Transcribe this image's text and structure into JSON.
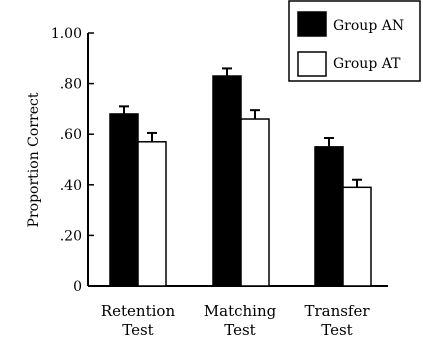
{
  "chart_data": {
    "type": "bar",
    "ylabel": "Proportion  Correct",
    "ylim": [
      0,
      1.0
    ],
    "yticks": [
      {
        "value": 0,
        "label": "0"
      },
      {
        "value": 0.2,
        "label": ".20"
      },
      {
        "value": 0.4,
        "label": ".40"
      },
      {
        "value": 0.6,
        "label": ".60"
      },
      {
        "value": 0.8,
        "label": ".80"
      },
      {
        "value": 1.0,
        "label": "1.00"
      }
    ],
    "categories": [
      {
        "line1": "Retention",
        "line2": "Test"
      },
      {
        "line1": "Matching",
        "line2": "Test"
      },
      {
        "line1": "Transfer",
        "line2": "Test"
      }
    ],
    "series": [
      {
        "name": "Group AN",
        "fill": "#000000",
        "values": [
          0.68,
          0.83,
          0.55
        ],
        "errors": [
          0.03,
          0.03,
          0.035
        ]
      },
      {
        "name": "Group AT",
        "fill": "#ffffff",
        "values": [
          0.57,
          0.66,
          0.39
        ],
        "errors": [
          0.035,
          0.035,
          0.03
        ]
      }
    ],
    "legend": "top-right",
    "grid": false
  }
}
